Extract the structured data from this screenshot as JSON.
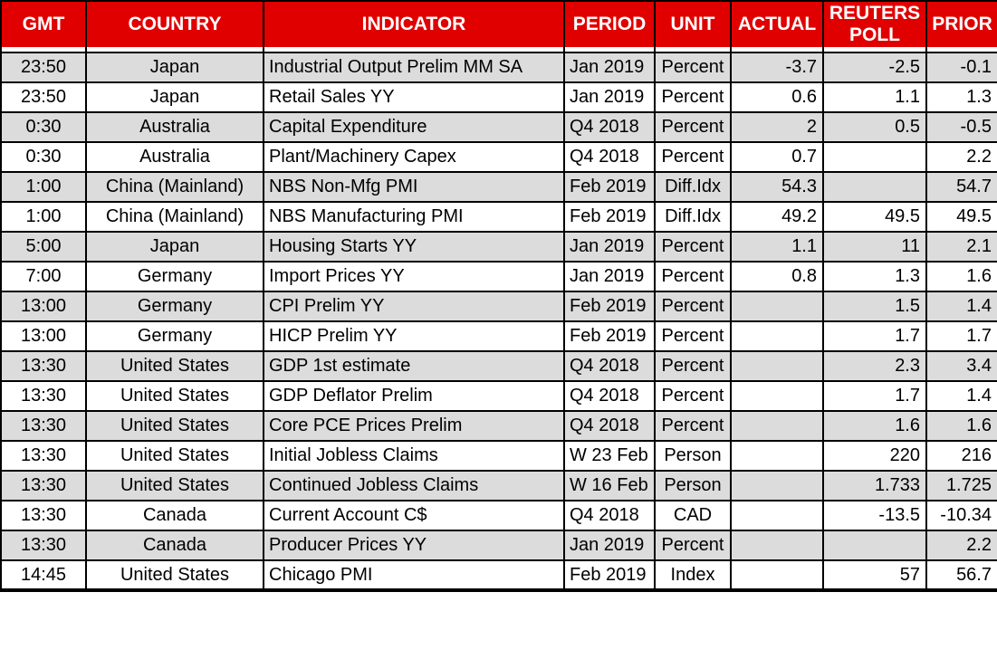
{
  "colors": {
    "header_bg": "#e00000",
    "header_text": "#ffffff",
    "row_shade": "#dcdcdc",
    "row_plain": "#ffffff",
    "grid": "#000000"
  },
  "table": {
    "columns": [
      {
        "key": "gmt",
        "label": "GMT"
      },
      {
        "key": "country",
        "label": "COUNTRY"
      },
      {
        "key": "indicator",
        "label": "INDICATOR"
      },
      {
        "key": "period",
        "label": "PERIOD"
      },
      {
        "key": "unit",
        "label": "UNIT"
      },
      {
        "key": "actual",
        "label": "ACTUAL"
      },
      {
        "key": "poll",
        "label": "REUTERS POLL"
      },
      {
        "key": "prior",
        "label": "PRIOR"
      }
    ],
    "rows": [
      {
        "gmt": "23:50",
        "country": "Japan",
        "indicator": "Industrial Output Prelim MM SA",
        "period": "Jan 2019",
        "unit": "Percent",
        "actual": "-3.7",
        "poll": "-2.5",
        "prior": "-0.1"
      },
      {
        "gmt": "23:50",
        "country": "Japan",
        "indicator": "Retail Sales YY",
        "period": "Jan 2019",
        "unit": "Percent",
        "actual": "0.6",
        "poll": "1.1",
        "prior": "1.3"
      },
      {
        "gmt": "0:30",
        "country": "Australia",
        "indicator": "Capital Expenditure",
        "period": "Q4 2018",
        "unit": "Percent",
        "actual": "2",
        "poll": "0.5",
        "prior": "-0.5"
      },
      {
        "gmt": "0:30",
        "country": "Australia",
        "indicator": "Plant/Machinery Capex",
        "period": "Q4 2018",
        "unit": "Percent",
        "actual": "0.7",
        "poll": "",
        "prior": "2.2"
      },
      {
        "gmt": "1:00",
        "country": "China (Mainland)",
        "indicator": "NBS Non-Mfg PMI",
        "period": "Feb 2019",
        "unit": "Diff.Idx",
        "actual": "54.3",
        "poll": "",
        "prior": "54.7"
      },
      {
        "gmt": "1:00",
        "country": "China (Mainland)",
        "indicator": "NBS Manufacturing PMI",
        "period": "Feb 2019",
        "unit": "Diff.Idx",
        "actual": "49.2",
        "poll": "49.5",
        "prior": "49.5"
      },
      {
        "gmt": "5:00",
        "country": "Japan",
        "indicator": "Housing Starts YY",
        "period": "Jan 2019",
        "unit": "Percent",
        "actual": "1.1",
        "poll": "11",
        "prior": "2.1"
      },
      {
        "gmt": "7:00",
        "country": "Germany",
        "indicator": "Import Prices YY",
        "period": "Jan 2019",
        "unit": "Percent",
        "actual": "0.8",
        "poll": "1.3",
        "prior": "1.6"
      },
      {
        "gmt": "13:00",
        "country": "Germany",
        "indicator": "CPI Prelim YY",
        "period": "Feb 2019",
        "unit": "Percent",
        "actual": "",
        "poll": "1.5",
        "prior": "1.4"
      },
      {
        "gmt": "13:00",
        "country": "Germany",
        "indicator": "HICP Prelim YY",
        "period": "Feb 2019",
        "unit": "Percent",
        "actual": "",
        "poll": "1.7",
        "prior": "1.7"
      },
      {
        "gmt": "13:30",
        "country": "United States",
        "indicator": "GDP 1st estimate",
        "period": "Q4 2018",
        "unit": "Percent",
        "actual": "",
        "poll": "2.3",
        "prior": "3.4"
      },
      {
        "gmt": "13:30",
        "country": "United States",
        "indicator": "GDP Deflator Prelim",
        "period": "Q4 2018",
        "unit": "Percent",
        "actual": "",
        "poll": "1.7",
        "prior": "1.4"
      },
      {
        "gmt": "13:30",
        "country": "United States",
        "indicator": "Core PCE Prices Prelim",
        "period": "Q4 2018",
        "unit": "Percent",
        "actual": "",
        "poll": "1.6",
        "prior": "1.6"
      },
      {
        "gmt": "13:30",
        "country": "United States",
        "indicator": "Initial Jobless Claims",
        "period": "W 23 Feb",
        "unit": "Person",
        "actual": "",
        "poll": "220",
        "prior": "216"
      },
      {
        "gmt": "13:30",
        "country": "United States",
        "indicator": "Continued Jobless Claims",
        "period": "W 16 Feb",
        "unit": "Person",
        "actual": "",
        "poll": "1.733",
        "prior": "1.725"
      },
      {
        "gmt": "13:30",
        "country": "Canada",
        "indicator": "Current Account C$",
        "period": "Q4 2018",
        "unit": "CAD",
        "actual": "",
        "poll": "-13.5",
        "prior": "-10.34"
      },
      {
        "gmt": "13:30",
        "country": "Canada",
        "indicator": "Producer Prices YY",
        "period": "Jan 2019",
        "unit": "Percent",
        "actual": "",
        "poll": "",
        "prior": "2.2"
      },
      {
        "gmt": "14:45",
        "country": "United States",
        "indicator": "Chicago PMI",
        "period": "Feb 2019",
        "unit": "Index",
        "actual": "",
        "poll": "57",
        "prior": "56.7"
      }
    ]
  }
}
